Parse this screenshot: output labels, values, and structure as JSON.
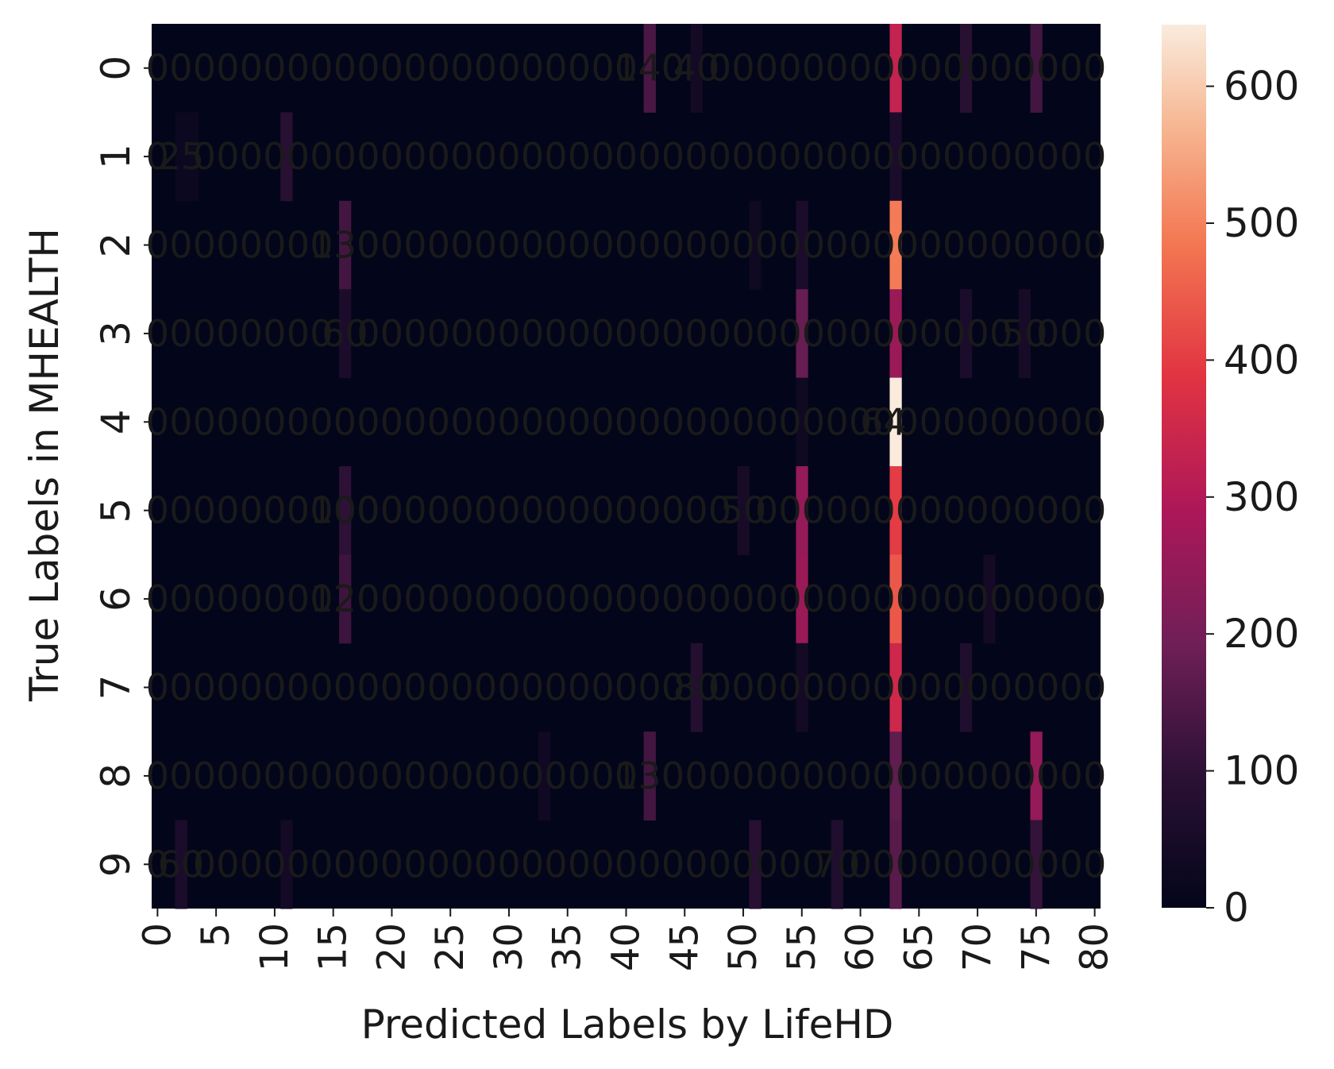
{
  "chart_data": {
    "type": "heatmap",
    "xlabel": "Predicted Labels by LifeHD",
    "ylabel": "True Labels in MHEALTH",
    "x_categories_count": 81,
    "y_categories": [
      "0",
      "1",
      "2",
      "3",
      "4",
      "5",
      "6",
      "7",
      "8",
      "9"
    ],
    "x_tick_labels": [
      "0",
      "5",
      "10",
      "15",
      "20",
      "25",
      "30",
      "35",
      "40",
      "45",
      "50",
      "55",
      "60",
      "65",
      "70",
      "75",
      "80"
    ],
    "x_tick_values": [
      0,
      5,
      10,
      15,
      20,
      25,
      30,
      35,
      40,
      45,
      50,
      55,
      60,
      65,
      70,
      75,
      80
    ],
    "colorbar": {
      "min": 0,
      "max": 645,
      "ticks": [
        0,
        100,
        200,
        300,
        400,
        500,
        600
      ]
    },
    "colormap": "rocket",
    "annotations": "per-cell counts printed in white (mostly overlapping); one dark label '64' visible at row 4 near column 63",
    "cells": [
      {
        "row": 0,
        "col": 42,
        "value": 140
      },
      {
        "row": 0,
        "col": 46,
        "value": 40
      },
      {
        "row": 0,
        "col": 63,
        "value": 330
      },
      {
        "row": 0,
        "col": 69,
        "value": 90
      },
      {
        "row": 0,
        "col": 75,
        "value": 130
      },
      {
        "row": 1,
        "col": 11,
        "value": 90
      },
      {
        "row": 1,
        "col": 63,
        "value": 60
      },
      {
        "row": 1,
        "col": 2,
        "value": 25
      },
      {
        "row": 1,
        "col": 3,
        "value": 22
      },
      {
        "row": 2,
        "col": 16,
        "value": 130
      },
      {
        "row": 2,
        "col": 63,
        "value": 490
      },
      {
        "row": 2,
        "col": 55,
        "value": 60
      },
      {
        "row": 2,
        "col": 51,
        "value": 30
      },
      {
        "row": 3,
        "col": 16,
        "value": 60
      },
      {
        "row": 3,
        "col": 55,
        "value": 180
      },
      {
        "row": 3,
        "col": 63,
        "value": 260
      },
      {
        "row": 3,
        "col": 69,
        "value": 60
      },
      {
        "row": 3,
        "col": 74,
        "value": 50
      },
      {
        "row": 4,
        "col": 63,
        "value": 645
      },
      {
        "row": 4,
        "col": 55,
        "value": 30
      },
      {
        "row": 5,
        "col": 16,
        "value": 100
      },
      {
        "row": 5,
        "col": 55,
        "value": 250
      },
      {
        "row": 5,
        "col": 63,
        "value": 400
      },
      {
        "row": 5,
        "col": 50,
        "value": 50
      },
      {
        "row": 6,
        "col": 16,
        "value": 120
      },
      {
        "row": 6,
        "col": 55,
        "value": 260
      },
      {
        "row": 6,
        "col": 63,
        "value": 440
      },
      {
        "row": 6,
        "col": 71,
        "value": 40
      },
      {
        "row": 7,
        "col": 46,
        "value": 80
      },
      {
        "row": 7,
        "col": 63,
        "value": 350
      },
      {
        "row": 7,
        "col": 69,
        "value": 70
      },
      {
        "row": 7,
        "col": 55,
        "value": 40
      },
      {
        "row": 8,
        "col": 42,
        "value": 130
      },
      {
        "row": 8,
        "col": 63,
        "value": 170
      },
      {
        "row": 8,
        "col": 75,
        "value": 250
      },
      {
        "row": 8,
        "col": 33,
        "value": 35
      },
      {
        "row": 9,
        "col": 2,
        "value": 60
      },
      {
        "row": 9,
        "col": 51,
        "value": 90
      },
      {
        "row": 9,
        "col": 58,
        "value": 70
      },
      {
        "row": 9,
        "col": 63,
        "value": 160
      },
      {
        "row": 9,
        "col": 75,
        "value": 110
      },
      {
        "row": 9,
        "col": 11,
        "value": 40
      }
    ]
  }
}
